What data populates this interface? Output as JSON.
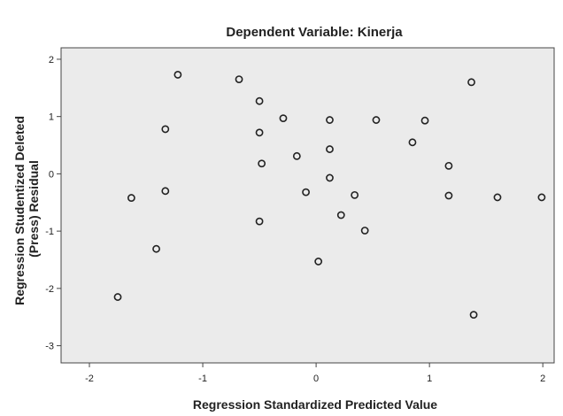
{
  "chart_data": {
    "type": "scatter",
    "title": "Dependent Variable: Kinerja",
    "xlabel": "Regression Standardized Predicted Value",
    "ylabel_lines": [
      "Regression Studentized Deleted",
      "(Press) Residual"
    ],
    "xlim": [
      -2.25,
      2.1
    ],
    "ylim": [
      -3.3,
      2.2
    ],
    "xticks": [
      -2,
      -1,
      0,
      1,
      2
    ],
    "yticks": [
      2,
      1,
      0,
      -1,
      -2,
      -3
    ],
    "xtick_labels": [
      "-2",
      "-1",
      "0",
      "1",
      "2"
    ],
    "ytick_labels": [
      "2",
      "1",
      "0",
      "-1",
      "-2",
      "-3"
    ],
    "grid": false,
    "colors": {
      "plot_background": "#ebebeb",
      "marker": "#222222",
      "axis": "#444444"
    },
    "points": [
      {
        "x": -1.22,
        "y": 1.73
      },
      {
        "x": -0.68,
        "y": 1.65
      },
      {
        "x": -0.5,
        "y": 1.27
      },
      {
        "x": -0.29,
        "y": 0.97
      },
      {
        "x": 0.12,
        "y": 0.94
      },
      {
        "x": 0.53,
        "y": 0.94
      },
      {
        "x": 0.96,
        "y": 0.93
      },
      {
        "x": 1.37,
        "y": 1.6
      },
      {
        "x": -1.33,
        "y": 0.78
      },
      {
        "x": -0.5,
        "y": 0.72
      },
      {
        "x": 0.85,
        "y": 0.55
      },
      {
        "x": 0.12,
        "y": 0.43
      },
      {
        "x": -0.17,
        "y": 0.31
      },
      {
        "x": -0.48,
        "y": 0.18
      },
      {
        "x": 1.17,
        "y": 0.14
      },
      {
        "x": 0.12,
        "y": -0.07
      },
      {
        "x": -1.33,
        "y": -0.3
      },
      {
        "x": -0.09,
        "y": -0.32
      },
      {
        "x": 0.34,
        "y": -0.37
      },
      {
        "x": 1.17,
        "y": -0.38
      },
      {
        "x": 1.6,
        "y": -0.41
      },
      {
        "x": 1.99,
        "y": -0.41
      },
      {
        "x": -1.63,
        "y": -0.42
      },
      {
        "x": 0.22,
        "y": -0.72
      },
      {
        "x": -0.5,
        "y": -0.83
      },
      {
        "x": 0.43,
        "y": -0.99
      },
      {
        "x": -1.41,
        "y": -1.31
      },
      {
        "x": 0.02,
        "y": -1.53
      },
      {
        "x": -1.75,
        "y": -2.15
      },
      {
        "x": 1.39,
        "y": -2.46
      }
    ]
  }
}
